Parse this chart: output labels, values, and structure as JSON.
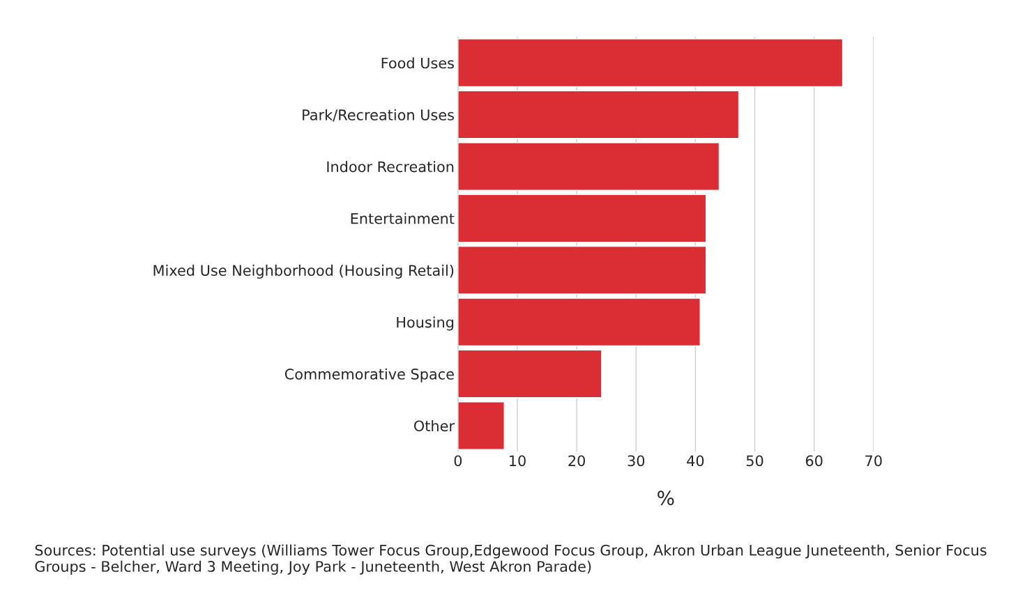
{
  "chart_data": {
    "type": "bar",
    "orientation": "horizontal",
    "xlabel": "%",
    "categories": [
      "Food Uses",
      "Park/Recreation Uses",
      "Indoor Recreation",
      "Entertainment",
      "Mixed Use Neighborhood (Housing Retail)",
      "Housing",
      "Commemorative Space",
      "Other"
    ],
    "values": [
      64.8,
      47.3,
      44.0,
      41.8,
      41.8,
      40.8,
      24.2,
      7.8
    ],
    "color": "#da2d34",
    "xlim": [
      0,
      70
    ],
    "xticks": [
      0,
      10,
      20,
      30,
      40,
      50,
      60,
      70
    ],
    "grid": "x",
    "annotations": [
      "Sources: Potential use surveys (Williams Tower Focus Group,Edgewood Focus Group, Akron Urban League Juneteenth, Senior Focus Groups - Belcher, Ward 3 Meeting, Joy Park - Juneteenth, West Akron Parade)"
    ]
  }
}
